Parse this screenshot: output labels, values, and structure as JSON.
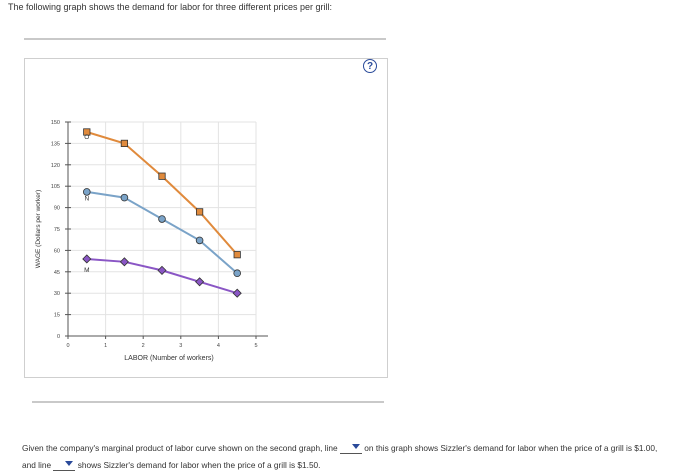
{
  "intro_text": "The following graph shows the demand for labor for three different prices per grill:",
  "help_label": "?",
  "chart_data": {
    "type": "line",
    "xlabel": "LABOR (Number of workers)",
    "ylabel": "WAGE (Dollars per worker)",
    "xlim": [
      0,
      5
    ],
    "ylim": [
      0,
      150
    ],
    "x_ticks": [
      "0",
      "1",
      "2",
      "3",
      "4",
      "5"
    ],
    "y_ticks": [
      "0",
      "15",
      "30",
      "45",
      "60",
      "75",
      "90",
      "105",
      "120",
      "135",
      "150"
    ],
    "grid": true,
    "series": [
      {
        "name": "O",
        "marker": "square",
        "color": "#e08a3c",
        "label_at": [
          0.5,
          138
        ],
        "x": [
          0.5,
          1.5,
          2.5,
          3.5,
          4.5
        ],
        "y": [
          143,
          135,
          112,
          87,
          57
        ]
      },
      {
        "name": "N",
        "marker": "circle",
        "color": "#7aa3c8",
        "label_at": [
          0.5,
          95
        ],
        "x": [
          0.5,
          1.5,
          2.5,
          3.5,
          4.5
        ],
        "y": [
          101,
          97,
          82,
          67,
          44
        ]
      },
      {
        "name": "M",
        "marker": "diamond",
        "color": "#8a56c5",
        "label_at": [
          0.5,
          45
        ],
        "x": [
          0.5,
          1.5,
          2.5,
          3.5,
          4.5
        ],
        "y": [
          54,
          52,
          46,
          38,
          30
        ]
      }
    ]
  },
  "footer": {
    "part1": "Given the company's marginal product of labor curve shown on the second graph, line",
    "part2": "on this graph shows Sizzler's demand for labor when the price of a grill is $1.00, and line",
    "part3": "shows Sizzler's demand for labor when the price of a grill is $1.50."
  }
}
